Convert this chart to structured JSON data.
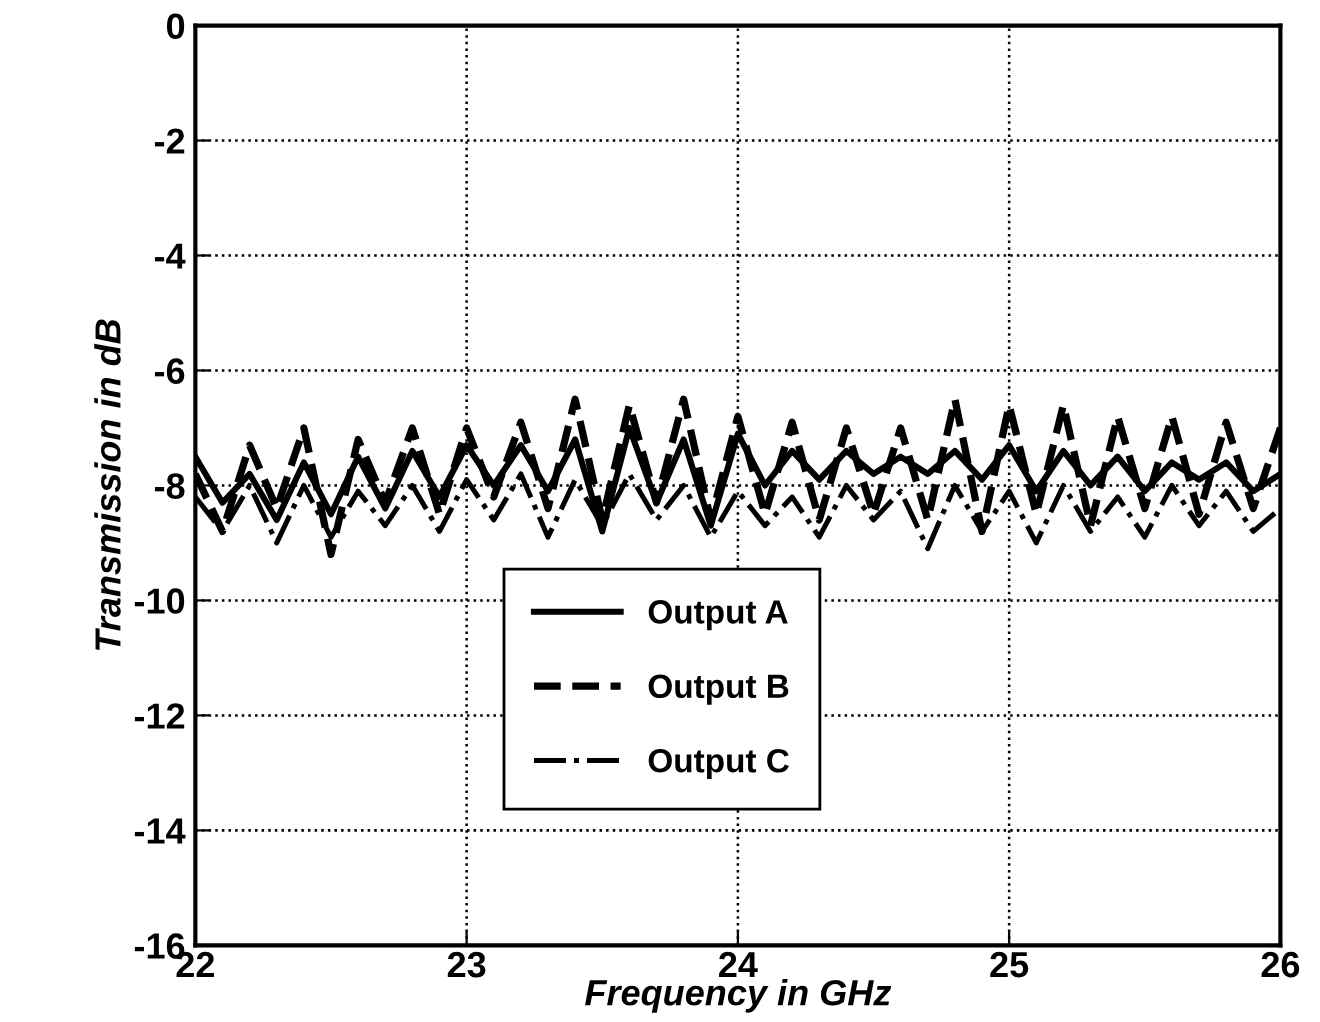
{
  "chart_data": {
    "type": "line",
    "xlabel": "Frequency in GHz",
    "ylabel": "Transmission in dB",
    "x": [
      22.0,
      22.1,
      22.2,
      22.3,
      22.4,
      22.5,
      22.6,
      22.7,
      22.8,
      22.9,
      23.0,
      23.1,
      23.2,
      23.3,
      23.4,
      23.5,
      23.6,
      23.7,
      23.8,
      23.9,
      24.0,
      24.1,
      24.2,
      24.3,
      24.4,
      24.5,
      24.6,
      24.7,
      24.8,
      24.9,
      25.0,
      25.1,
      25.2,
      25.3,
      25.4,
      25.5,
      25.6,
      25.7,
      25.8,
      25.9,
      26.0
    ],
    "series": [
      {
        "name": "Output A",
        "color": "#000000",
        "line_style": "solid",
        "values": [
          -7.5,
          -8.3,
          -7.8,
          -8.6,
          -7.6,
          -8.5,
          -7.5,
          -8.4,
          -7.4,
          -8.2,
          -7.3,
          -8.0,
          -7.3,
          -8.1,
          -7.2,
          -8.8,
          -7.0,
          -8.3,
          -7.2,
          -8.7,
          -7.1,
          -8.0,
          -7.4,
          -7.9,
          -7.4,
          -7.8,
          -7.5,
          -7.8,
          -7.4,
          -7.9,
          -7.3,
          -8.1,
          -7.4,
          -8.0,
          -7.5,
          -8.1,
          -7.6,
          -7.9,
          -7.6,
          -8.1,
          -7.8
        ]
      },
      {
        "name": "Output B",
        "color": "#000000",
        "line_style": "dashed",
        "values": [
          -7.8,
          -8.8,
          -7.3,
          -8.4,
          -7.0,
          -9.2,
          -7.2,
          -8.3,
          -7.0,
          -8.5,
          -7.0,
          -8.2,
          -6.9,
          -8.4,
          -6.5,
          -8.6,
          -6.6,
          -8.3,
          -6.5,
          -8.6,
          -6.8,
          -8.5,
          -6.9,
          -8.6,
          -7.0,
          -8.5,
          -7.0,
          -8.6,
          -6.5,
          -8.8,
          -6.6,
          -8.5,
          -6.6,
          -8.7,
          -6.8,
          -8.4,
          -6.8,
          -8.5,
          -6.9,
          -8.4,
          -7.0
        ]
      },
      {
        "name": "Output C",
        "color": "#000000",
        "line_style": "dashdot",
        "values": [
          -8.2,
          -8.8,
          -8.0,
          -9.0,
          -8.0,
          -8.9,
          -8.1,
          -8.7,
          -8.0,
          -8.8,
          -7.9,
          -8.6,
          -7.8,
          -8.9,
          -7.9,
          -8.7,
          -7.8,
          -8.6,
          -8.0,
          -8.9,
          -8.1,
          -8.7,
          -8.2,
          -8.9,
          -8.0,
          -8.6,
          -8.1,
          -9.1,
          -8.0,
          -8.8,
          -8.1,
          -9.0,
          -8.0,
          -8.8,
          -8.2,
          -8.9,
          -8.0,
          -8.7,
          -8.1,
          -8.8,
          -8.4
        ]
      }
    ],
    "xlim": [
      22,
      26
    ],
    "ylim": [
      -16,
      0
    ],
    "xticks": [
      22,
      23,
      24,
      25,
      26
    ],
    "yticks": [
      -16,
      -14,
      -12,
      -10,
      -8,
      -6,
      -4,
      -2,
      0
    ],
    "grid": true,
    "legend": "bottom"
  }
}
